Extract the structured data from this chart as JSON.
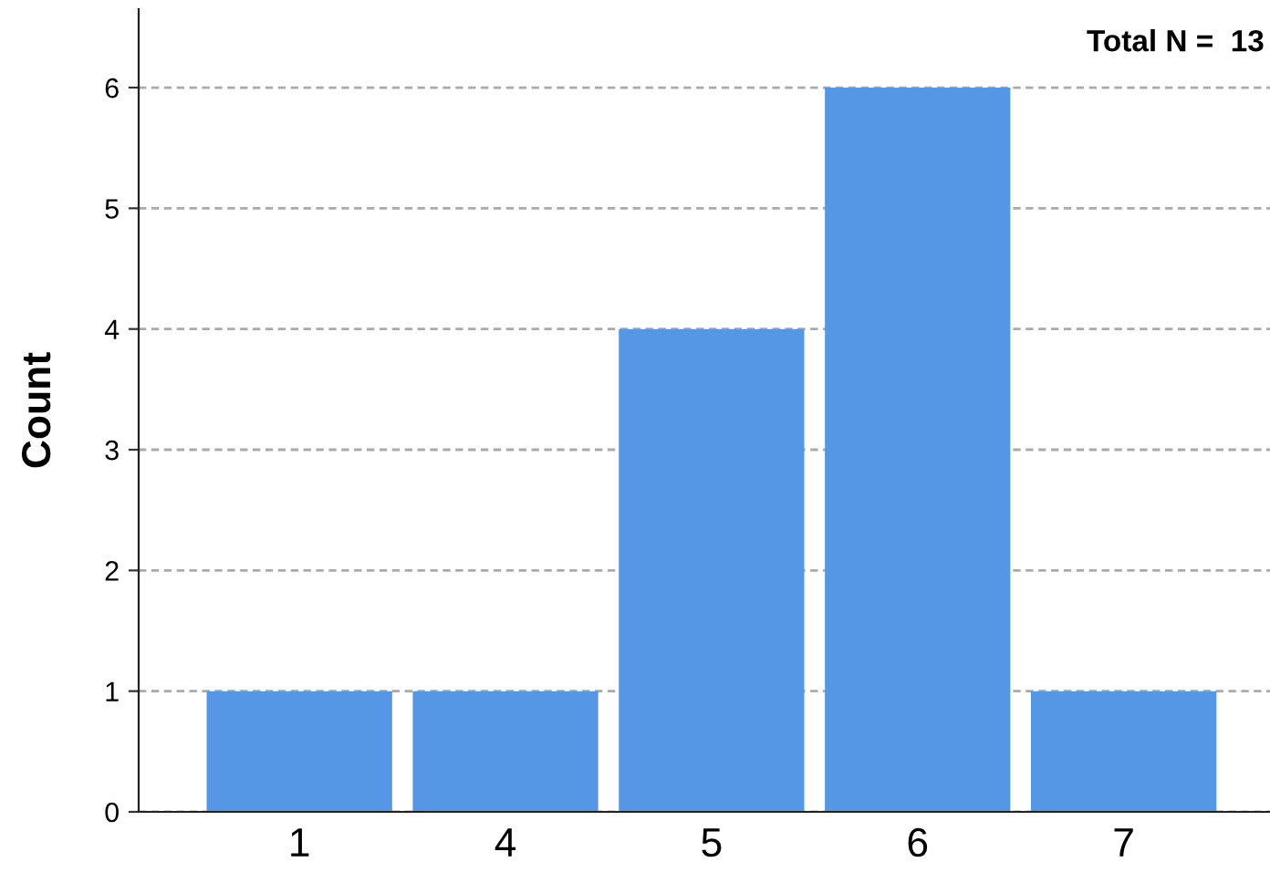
{
  "chart_data": {
    "type": "bar",
    "ylabel": "Count",
    "categories": [
      "1",
      "4",
      "5",
      "6",
      "7"
    ],
    "values": [
      1,
      1,
      4,
      6,
      1
    ],
    "color": "#5597e4",
    "ylim": [
      0,
      6.65
    ],
    "yticks": [
      0,
      1,
      2,
      3,
      4,
      5,
      6
    ],
    "grid": "y",
    "annotations": [
      "Total N =  13"
    ]
  }
}
